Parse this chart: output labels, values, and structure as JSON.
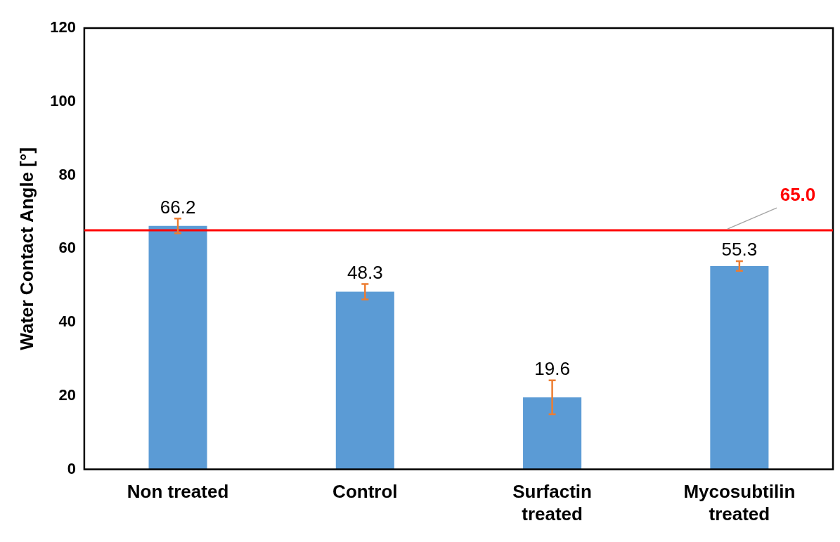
{
  "chart_data": {
    "type": "bar",
    "ylabel": "Water Contact Angle [°]",
    "categories": [
      "Non treated",
      "Control",
      "Surfactin treated",
      "Mycosubtilin treated"
    ],
    "values": [
      66.2,
      48.3,
      19.6,
      55.3
    ],
    "color": "#5b9bd5",
    "errors": [
      2,
      2.1,
      4.6,
      1.3
    ],
    "data_labels": true,
    "ylim": [
      0,
      120
    ],
    "yticks": [
      0,
      20,
      40,
      60,
      80,
      100,
      120
    ],
    "grid": false,
    "legend": false,
    "ref_lines": [
      {
        "axis": "y",
        "value": 65,
        "label": "65.0",
        "color": "#ff0000"
      }
    ]
  }
}
